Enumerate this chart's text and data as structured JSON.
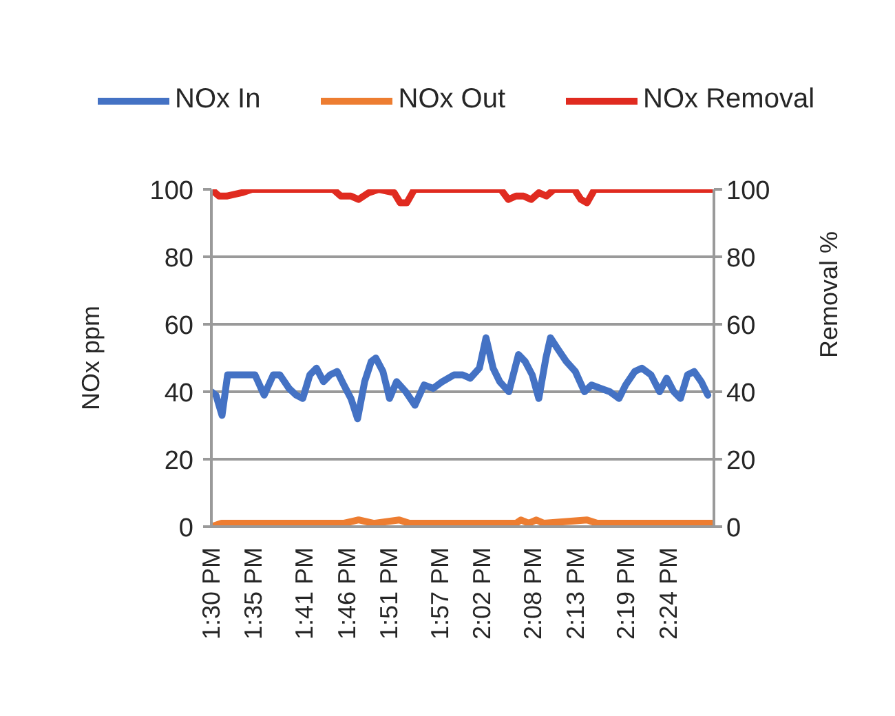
{
  "chart_data": {
    "type": "line",
    "ylabel": "NOx ppm",
    "y2label": "Removal %",
    "legend": "top",
    "grid": "y",
    "xlim": [
      13.5,
      14.49
    ],
    "xticks": [
      {
        "value": 13.5,
        "label": "1:30 PM"
      },
      {
        "value": 13.583,
        "label": "1:35 PM"
      },
      {
        "value": 13.683,
        "label": "1:41 PM"
      },
      {
        "value": 13.767,
        "label": "1:46 PM"
      },
      {
        "value": 13.85,
        "label": "1:51 PM"
      },
      {
        "value": 13.95,
        "label": "1:57 PM"
      },
      {
        "value": 14.033,
        "label": "2:02 PM"
      },
      {
        "value": 14.133,
        "label": "2:08 PM"
      },
      {
        "value": 14.217,
        "label": "2:13 PM"
      },
      {
        "value": 14.317,
        "label": "2:19 PM"
      },
      {
        "value": 14.4,
        "label": "2:24 PM"
      }
    ],
    "ylim": [
      0,
      100
    ],
    "yticks": [
      0,
      20,
      40,
      60,
      80,
      100
    ],
    "y2lim": [
      0,
      100
    ],
    "y2ticks": [
      0,
      20,
      40,
      60,
      80,
      100
    ],
    "series": [
      {
        "name": "NOx In",
        "color": "#4472c4",
        "x": [
          13.5,
          13.509,
          13.521,
          13.532,
          13.549,
          13.568,
          13.586,
          13.604,
          13.622,
          13.635,
          13.653,
          13.667,
          13.68,
          13.694,
          13.707,
          13.721,
          13.734,
          13.748,
          13.761,
          13.775,
          13.788,
          13.802,
          13.815,
          13.824,
          13.838,
          13.851,
          13.865,
          13.883,
          13.901,
          13.919,
          13.937,
          13.955,
          13.978,
          13.995,
          14.01,
          14.028,
          14.041,
          14.055,
          14.068,
          14.086,
          14.105,
          14.118,
          14.132,
          14.145,
          14.159,
          14.168,
          14.181,
          14.199,
          14.217,
          14.235,
          14.249,
          14.267,
          14.285,
          14.303,
          14.316,
          14.334,
          14.348,
          14.366,
          14.383,
          14.397,
          14.411,
          14.424,
          14.438,
          14.451,
          14.465,
          14.478
        ],
        "values": [
          40,
          39,
          33,
          45,
          45,
          45,
          45,
          39,
          45,
          45,
          41,
          39,
          38,
          45,
          47,
          43,
          45,
          46,
          42,
          38,
          32,
          43,
          49,
          50,
          46,
          38,
          43,
          40,
          36,
          42,
          41,
          43,
          45,
          45,
          44,
          47,
          56,
          47,
          43,
          40,
          51,
          49,
          45,
          38,
          50,
          56,
          53,
          49,
          46,
          40,
          42,
          41,
          40,
          38,
          42,
          46,
          47,
          45,
          40,
          44,
          40,
          38,
          45,
          46,
          43,
          39
        ]
      },
      {
        "name": "NOx Out",
        "color": "#ed7d31",
        "x": [
          13.5,
          13.52,
          13.7,
          13.76,
          13.79,
          13.82,
          13.87,
          13.89,
          14.1,
          14.11,
          14.125,
          14.14,
          14.155,
          14.24,
          14.26,
          14.486
        ],
        "values": [
          0,
          1,
          1,
          1,
          2,
          1,
          2,
          1,
          1,
          2,
          1,
          2,
          1,
          2,
          1,
          1
        ]
      },
      {
        "name": "NOx Removal",
        "color": "#e02b20",
        "axis": "y2",
        "x": [
          13.5,
          13.515,
          13.53,
          13.56,
          13.58,
          13.74,
          13.755,
          13.775,
          13.79,
          13.81,
          13.83,
          13.86,
          13.872,
          13.885,
          13.9,
          14.07,
          14.085,
          14.1,
          14.115,
          14.13,
          14.145,
          14.16,
          14.175,
          14.215,
          14.228,
          14.24,
          14.255,
          14.486
        ],
        "values": [
          100,
          98,
          98,
          99,
          100,
          100,
          98,
          98,
          97,
          99,
          100,
          99,
          96,
          96,
          100,
          100,
          97,
          98,
          98,
          97,
          99,
          98,
          100,
          100,
          97,
          96,
          100,
          100
        ]
      }
    ]
  }
}
